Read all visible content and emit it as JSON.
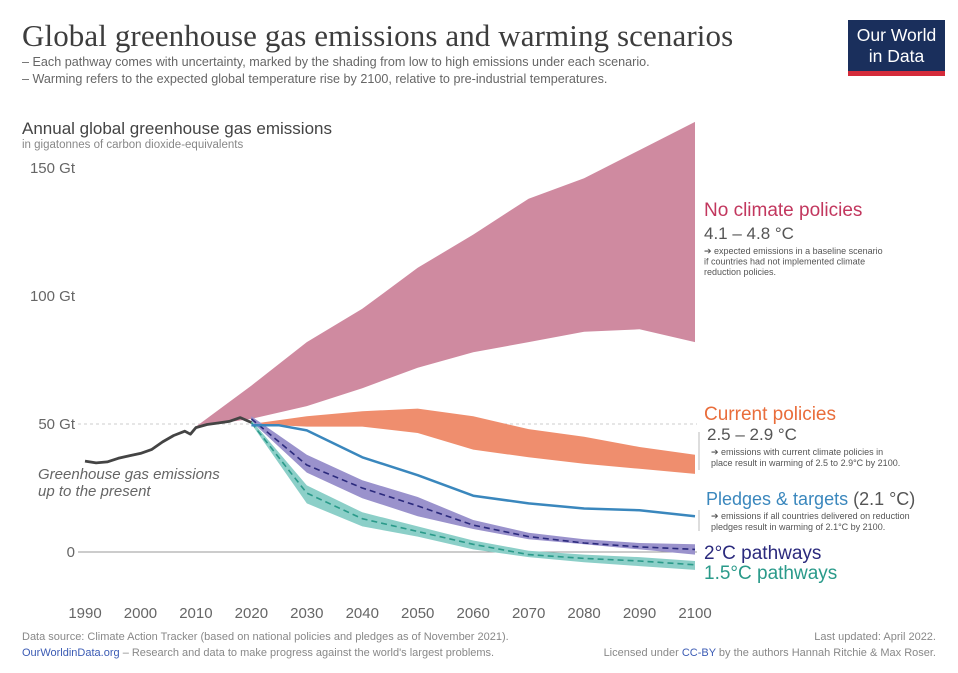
{
  "header": {
    "title": "Global greenhouse gas emissions and warming scenarios",
    "subtitle_1": "– Each pathway comes with uncertainty, marked by the shading from low to high emissions under each scenario.",
    "subtitle_2": "– Warming refers to the expected global temperature rise by 2100, relative to pre-industrial temperatures."
  },
  "logo": {
    "line1": "Our World",
    "line2": "in Data"
  },
  "footer": {
    "source": "Data source: Climate Action Tracker (based on national policies and pledges as of November 2021).",
    "site": "OurWorldinData.org",
    "site_tagline": "– Research and data to make progress against the world's largest problems.",
    "updated": "Last updated: April 2022.",
    "license_prefix": "Licensed under ",
    "license": "CC-BY",
    "license_suffix": " by the authors Hannah Ritchie & Max Roser."
  },
  "colors": {
    "no_policy": "#cf8aa0",
    "no_policy_label": "#c2375e",
    "current": "#ef8e6e",
    "current_label": "#e96d3b",
    "pledges": "#3a87bd",
    "two_c": "#9a92cc",
    "two_c_line": "#2b2a7d",
    "one_five_c": "#8ccfc8",
    "one_five_c_line": "#2a9a8a",
    "historical": "#444444"
  },
  "chart_data": {
    "type": "area",
    "title": "Annual global greenhouse gas emissions",
    "subtitle": "in gigatonnes of carbon dioxide-equivalents",
    "x_ticks": [
      1990,
      2000,
      2010,
      2020,
      2030,
      2040,
      2050,
      2060,
      2070,
      2080,
      2090,
      2100
    ],
    "y_ticks": [
      {
        "value": 0,
        "label": "0"
      },
      {
        "value": 50,
        "label": "50 Gt"
      },
      {
        "value": 100,
        "label": "100 Gt"
      },
      {
        "value": 150,
        "label": "150 Gt"
      }
    ],
    "xlim": [
      1990,
      2100
    ],
    "ylim": [
      -10,
      150
    ],
    "historical": {
      "annotation_line1": "Greenhouse gas emissions",
      "annotation_line2": "up to the present",
      "x": [
        1990,
        1992,
        1994,
        1996,
        1998,
        2000,
        2002,
        2004,
        2006,
        2008,
        2009,
        2010,
        2012,
        2014,
        2016,
        2018,
        2020
      ],
      "y": [
        35.5,
        34.8,
        35.2,
        36.6,
        37.6,
        38.5,
        40,
        43,
        45.5,
        47.2,
        46,
        48.6,
        49.8,
        50.4,
        51,
        52.5,
        50.6
      ]
    },
    "series": [
      {
        "name": "No climate policies",
        "warming": "4.1 – 4.8 °C",
        "description": [
          "➔ expected emissions in a baseline scenario",
          "if countries had not implemented climate",
          "reduction policies."
        ],
        "x": [
          2010,
          2020,
          2030,
          2040,
          2050,
          2060,
          2070,
          2080,
          2090,
          2100
        ],
        "low": [
          49,
          52,
          57,
          64,
          72,
          78,
          82,
          86,
          87,
          82
        ],
        "high": [
          49,
          65,
          82,
          95,
          111,
          124,
          138,
          146,
          157,
          168
        ]
      },
      {
        "name": "Current policies",
        "warming": "2.5 – 2.9 °C",
        "description": [
          "➔ emissions with current climate policies in",
          "place result in warming of 2.5 to 2.9°C by 2100."
        ],
        "x": [
          2020,
          2030,
          2040,
          2050,
          2060,
          2070,
          2080,
          2090,
          2100
        ],
        "low": [
          50,
          49,
          49,
          46.5,
          40,
          37,
          34.5,
          32.5,
          30.5
        ],
        "high": [
          50,
          53,
          55,
          56,
          53,
          48,
          45,
          41,
          38
        ]
      },
      {
        "name": "Pledges & targets",
        "warming": "(2.1 °C)",
        "description": [
          "➔ emissions if all countries delivered on reduction",
          "pledges result in warming of 2.1°C by 2100."
        ],
        "x": [
          2020,
          2025,
          2030,
          2040,
          2050,
          2060,
          2070,
          2080,
          2090,
          2100
        ],
        "y": [
          49.5,
          49.5,
          47.5,
          37,
          30,
          22,
          19,
          17,
          16.3,
          14
        ]
      },
      {
        "name": "2°C pathways",
        "x": [
          2020,
          2030,
          2040,
          2050,
          2060,
          2070,
          2080,
          2090,
          2100
        ],
        "low": [
          51,
          31,
          21,
          14,
          9,
          5,
          3,
          1,
          -1
        ],
        "high": [
          53,
          38,
          28,
          21.5,
          12.5,
          7.5,
          5,
          3.5,
          3
        ],
        "median": [
          52,
          34,
          25,
          18,
          10.5,
          6,
          3.5,
          2,
          1
        ]
      },
      {
        "name": "1.5°C pathways",
        "x": [
          2020,
          2030,
          2040,
          2050,
          2060,
          2070,
          2080,
          2090,
          2100
        ],
        "low": [
          50,
          19,
          10,
          6,
          1,
          -2,
          -4,
          -5.5,
          -7
        ],
        "high": [
          51.5,
          26,
          15.5,
          10,
          4.5,
          0.5,
          -1,
          -2,
          -3.5
        ],
        "median": [
          50.5,
          23,
          13,
          8,
          3,
          -1,
          -2.5,
          -3.5,
          -5
        ]
      }
    ]
  }
}
